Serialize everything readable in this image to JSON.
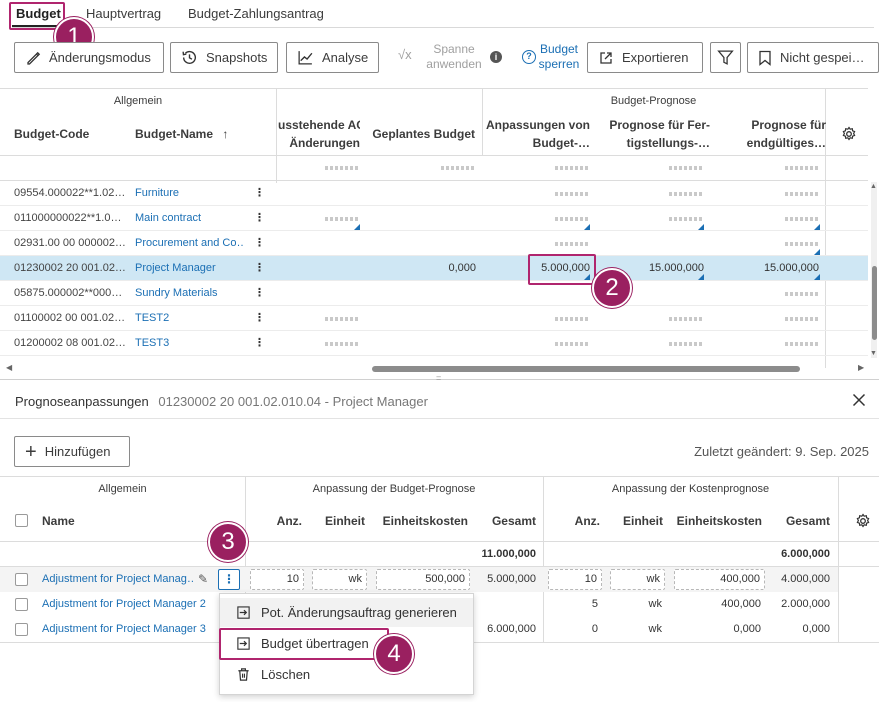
{
  "tabs": [
    "Budget",
    "Hauptvertrag",
    "Budget-Zahlungsantrag"
  ],
  "toolbar": {
    "change_mode": "Änderungsmodus",
    "snapshots": "Snapshots",
    "analysis": "Analyse",
    "range_apply_line1": "Spanne",
    "range_apply_line2": "anwenden",
    "lock_line1": "Budget",
    "lock_line2": "sperren",
    "export": "Exportieren",
    "view": "Nicht gespei…"
  },
  "budget_table": {
    "group_general": "Allgemein",
    "group_forecast": "Budget-Prognose",
    "col_code": "Budget-Code",
    "col_name": "Budget-Name",
    "col_pending_line1": "usstehende AG-",
    "col_pending_line2": "Änderungen",
    "col_planned": "Geplantes Budget",
    "col_adjust_line1": "Anpassungen von",
    "col_adjust_line2": "Budget-…",
    "col_fc_completion_line1": "Prognose für Fer-",
    "col_fc_completion_line2": "tigstellungs-…",
    "col_fc_final_line1": "Prognose für",
    "col_fc_final_line2": "endgültiges…",
    "rows": [
      {
        "code": "09554.000022**1.02…",
        "name": "Furniture"
      },
      {
        "code": "011000000022**1.0…",
        "name": "Main contract"
      },
      {
        "code": "02931.00 00 000002…",
        "name": "Procurement and Co…"
      },
      {
        "code": "01230002 20 001.02…",
        "name": "Project Manager",
        "planned": "0,000",
        "adjust": "5.000,000",
        "fc_completion": "15.000,000",
        "fc_final": "15.000,000"
      },
      {
        "code": "05875.000002**000…",
        "name": "Sundry Materials"
      },
      {
        "code": "01100002 00 001.02…",
        "name": "TEST2"
      },
      {
        "code": "01200002 08 001.02…",
        "name": "TEST3"
      }
    ]
  },
  "panel": {
    "title": "Prognoseanpassungen",
    "subtitle": "01230002 20 001.02.010.04 - Project Manager",
    "add_button": "Hinzufügen",
    "last_changed": "Zuletzt geändert: 9. Sep. 2025",
    "group_general": "Allgemein",
    "group_budget_adj": "Anpassung der Budget-Prognose",
    "group_cost_adj": "Anpassung der Kostenprognose",
    "col_name": "Name",
    "col_qty": "Anz.",
    "col_unit": "Einheit",
    "col_unit_cost": "Einheitskosten",
    "col_total": "Gesamt",
    "totals": {
      "budget_total": "11.000,000",
      "cost_total": "6.000,000"
    },
    "rows": [
      {
        "name": "Adjustment for Project Manag…",
        "qty": "10",
        "unit": "wk",
        "unit_cost": "500,000",
        "total": "5.000,000",
        "c_qty": "10",
        "c_unit": "wk",
        "c_unit_cost": "400,000",
        "c_total": "4.000,000"
      },
      {
        "name": "Adjustment for Project Manager 2",
        "c_qty": "5",
        "c_unit": "wk",
        "c_unit_cost": "400,000",
        "c_total": "2.000,000"
      },
      {
        "name": "Adjustment for Project Manager 3",
        "total": "6.000,000",
        "c_qty": "0",
        "c_unit": "wk",
        "c_unit_cost": "0,000",
        "c_total": "0,000"
      }
    ]
  },
  "context_menu": {
    "generate": "Pot. Änderungsauftrag generieren",
    "transfer": "Budget übertragen",
    "delete": "Löschen"
  },
  "callouts": [
    "1",
    "2",
    "3",
    "4"
  ],
  "colors": {
    "accent": "#1b6fb4",
    "callout": "#9a2060",
    "selected_row": "#cfe7f4"
  }
}
